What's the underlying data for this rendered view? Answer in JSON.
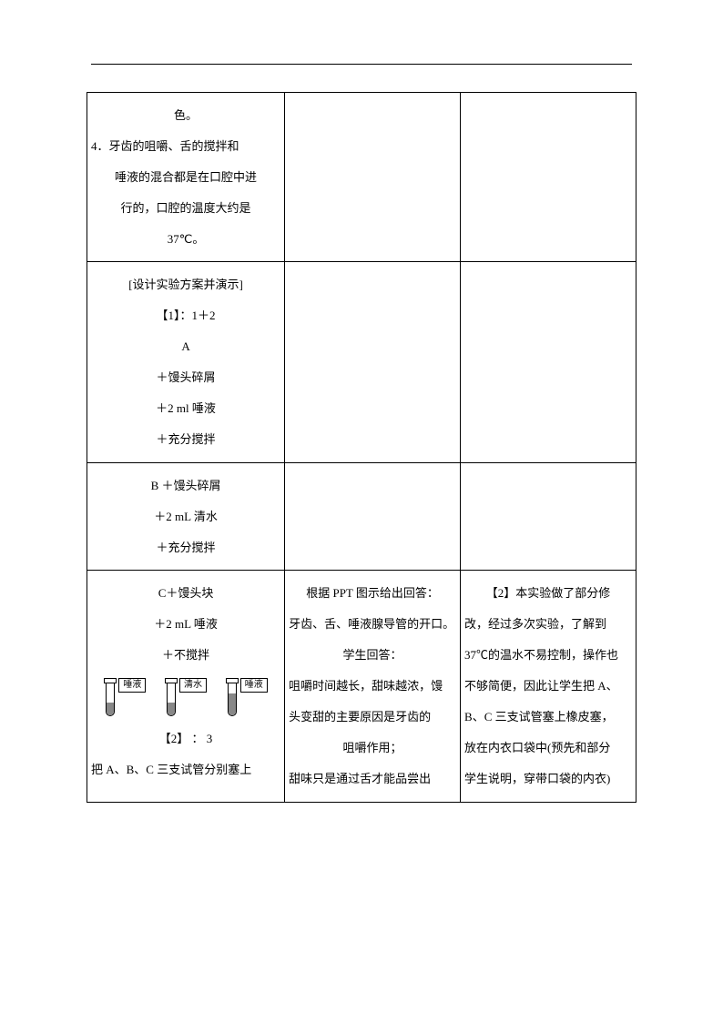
{
  "table": {
    "rows": [
      {
        "col1": [
          "色。",
          "4．牙齿的咀嚼、舌的搅拌和",
          "唾液的混合都是在口腔中进",
          "行的，口腔的温度大约是",
          "37℃。"
        ],
        "col1_align": [
          "center",
          "left",
          "center",
          "center",
          "center"
        ],
        "col2": [],
        "col3": []
      },
      {
        "col1": [
          "[设计实验方案并演示]",
          "【1】：1＋2",
          "A",
          "＋馒头碎屑",
          "＋2 ml 唾液",
          "＋充分搅拌"
        ],
        "col1_align": [
          "center",
          "center",
          "center",
          "center",
          "center",
          "center"
        ],
        "col2": [],
        "col3": []
      },
      {
        "col1": [
          "B ＋馒头碎屑",
          "＋2 mL 清水",
          "＋充分搅拌"
        ],
        "col1_align": [
          "center",
          "center",
          "center"
        ],
        "col2": [],
        "col3": []
      },
      {
        "col1_pre": [
          "C＋馒头块",
          "＋2 mL 唾液",
          "＋不搅拌"
        ],
        "col1_post": [
          "【2】 ：  3",
          "把 A、B、C 三支试管分别塞上"
        ],
        "col2": [
          "根据 PPT 图示给出回答：",
          "牙齿、舌、唾液腺导管的开口。",
          "学生回答：",
          "咀嚼时间越长，甜味越浓，馒",
          "头变甜的主要原因是牙齿的",
          "咀嚼作用；",
          "甜味只是通过舌才能品尝出"
        ],
        "col3": [
          "【2】本实验做了部分修",
          "改，经过多次实验，了解到",
          "37℃的温水不易控制，操作也",
          "不够简便，因此让学生把 A、",
          "B、C 三支试管塞上橡皮塞，",
          "放在内衣口袋中(预先和部分",
          "学生说明，穿带口袋的内衣)"
        ],
        "has_diagram": true
      }
    ]
  },
  "diagram": {
    "tubes": [
      {
        "label": "唾液",
        "fill": "low"
      },
      {
        "label": "清水",
        "fill": "low"
      },
      {
        "label": "唾液",
        "fill": "high"
      }
    ]
  }
}
